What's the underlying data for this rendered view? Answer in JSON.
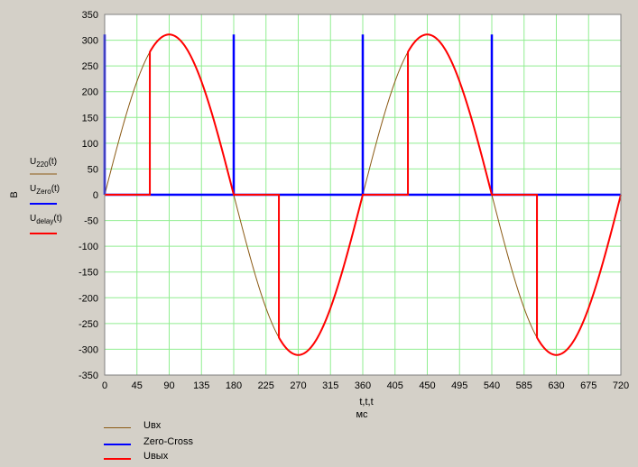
{
  "chart_data": {
    "type": "line",
    "xlabel": "t,t,t",
    "xunit": "мс",
    "ylabel": "В",
    "xlim": [
      0,
      720
    ],
    "ylim": [
      -350,
      350
    ],
    "x_ticks": [
      0,
      45,
      90,
      135,
      180,
      225,
      270,
      315,
      360,
      405,
      450,
      495,
      540,
      585,
      630,
      675,
      720
    ],
    "y_ticks": [
      350,
      300,
      250,
      200,
      150,
      100,
      50,
      0,
      -50,
      -100,
      -150,
      -200,
      -250,
      -300,
      -350
    ],
    "grid": true,
    "amplitude": 311,
    "series": [
      {
        "name": "Uвх",
        "expr": "U220(t)",
        "var": "U",
        "sub": "220",
        "color": "#8b5a14",
        "width": 1
      },
      {
        "name": "Zero-Cross",
        "expr": "UZero(t)",
        "var": "U",
        "sub": "Zero",
        "color": "#0000ff",
        "width": 2.5,
        "pulses_at": [
          0,
          180,
          360,
          540
        ]
      },
      {
        "name": "Uвых",
        "expr": "Udelay(t)",
        "var": "U",
        "sub": "delay",
        "color": "#ff0000",
        "width": 2,
        "on_intervals": [
          [
            63,
            180
          ],
          [
            243,
            360
          ],
          [
            423,
            540
          ],
          [
            603,
            720
          ]
        ]
      }
    ],
    "legend_position": "bottom-left"
  }
}
